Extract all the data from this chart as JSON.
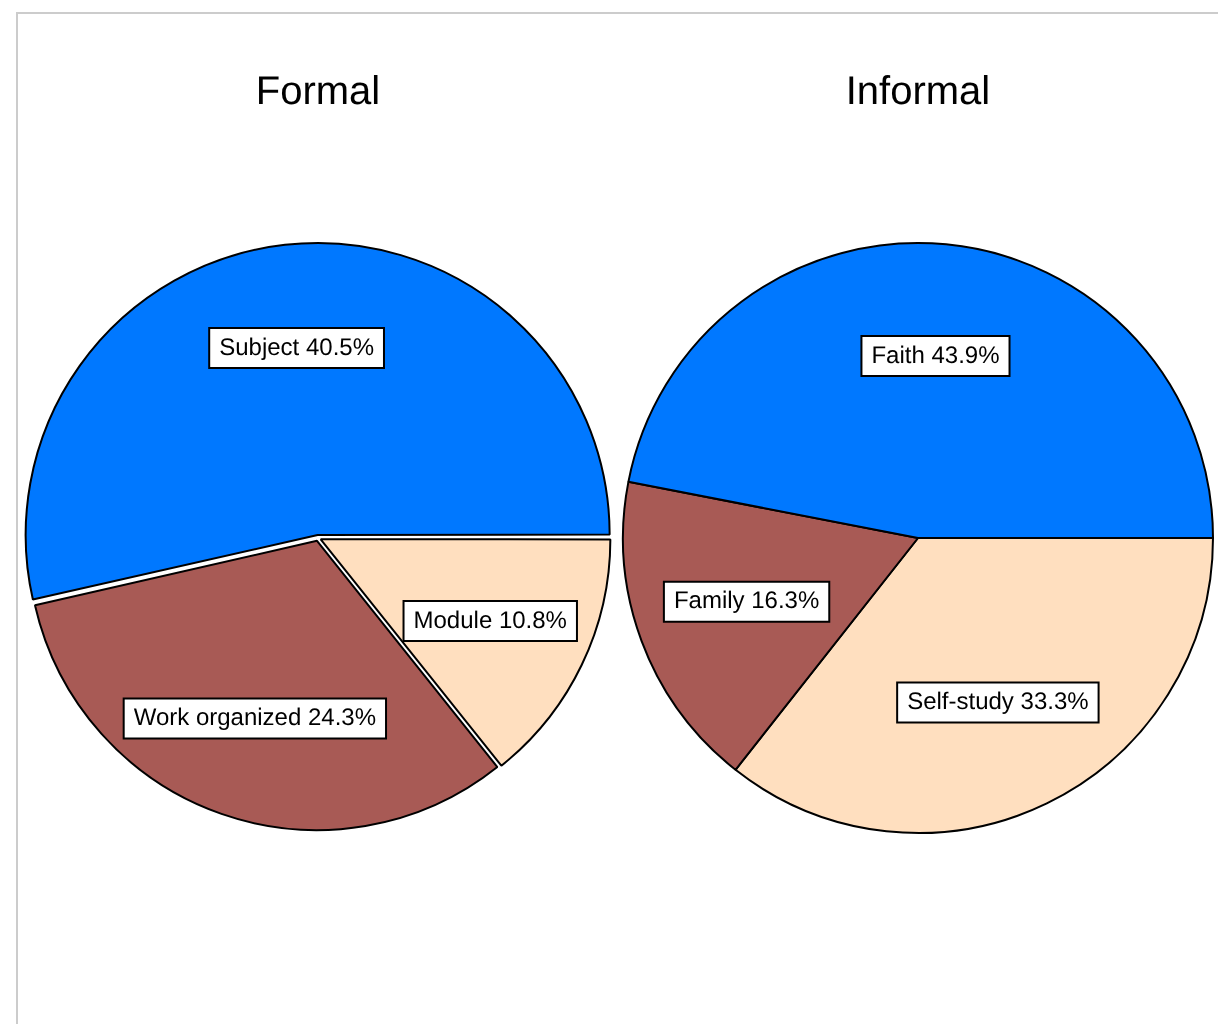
{
  "chart_data": [
    {
      "type": "pie",
      "title": "Formal",
      "categories": [
        "Subject",
        "Work organized",
        "Module"
      ],
      "values": [
        40.5,
        24.3,
        10.8
      ],
      "value_labels": [
        "40.5%",
        "24.3%",
        "10.8%"
      ],
      "colors": [
        "#0078ff",
        "#a85a55",
        "#ffdfbf"
      ]
    },
    {
      "type": "pie",
      "title": "Informal",
      "categories": [
        "Faith",
        "Family",
        "Self-study"
      ],
      "values": [
        43.9,
        16.3,
        33.3
      ],
      "value_labels": [
        "43.9%",
        "16.3%",
        "33.3%"
      ],
      "colors": [
        "#0078ff",
        "#a85a55",
        "#ffdfbf"
      ]
    }
  ]
}
